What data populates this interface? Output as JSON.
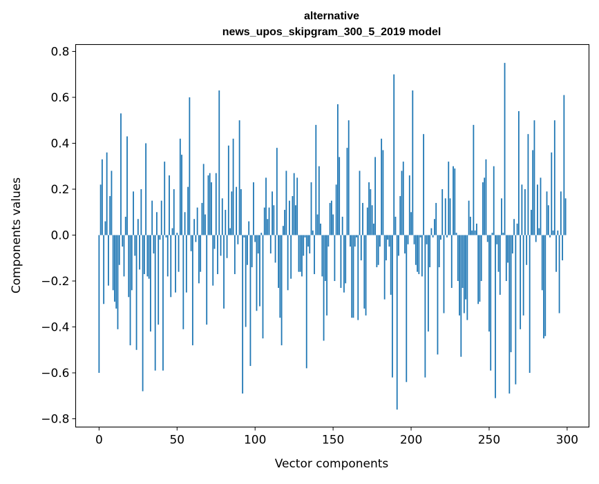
{
  "chart_data": {
    "type": "bar",
    "title_lines": [
      "alternative",
      "news_upos_skipgram_300_5_2019 model"
    ],
    "xlabel": "Vector components",
    "ylabel": "Components values",
    "xlim": [
      -15,
      314
    ],
    "ylim": [
      -0.836,
      0.83
    ],
    "xticks": [
      0,
      50,
      100,
      150,
      200,
      250,
      300
    ],
    "yticks": [
      -0.8,
      -0.6,
      -0.4,
      -0.2,
      0.0,
      0.2,
      0.4,
      0.6,
      0.8
    ],
    "ytick_labels": [
      "−0.8",
      "−0.6",
      "−0.4",
      "−0.2",
      "0.0",
      "0.2",
      "0.4",
      "0.6",
      "0.8"
    ],
    "xtick_labels": [
      "0",
      "50",
      "100",
      "150",
      "200",
      "250",
      "300"
    ],
    "grid": false,
    "bar_color": "#1f77b4",
    "values": [
      -0.6,
      0.22,
      0.33,
      -0.3,
      0.06,
      0.36,
      -0.22,
      0.17,
      0.28,
      -0.24,
      -0.29,
      -0.32,
      -0.41,
      -0.13,
      0.53,
      -0.05,
      -0.18,
      0.08,
      0.43,
      -0.27,
      -0.48,
      -0.24,
      0.19,
      -0.09,
      -0.5,
      0.07,
      -0.15,
      0.2,
      -0.68,
      -0.17,
      0.4,
      -0.18,
      -0.19,
      -0.42,
      0.15,
      -0.08,
      -0.59,
      0.1,
      -0.39,
      -0.02,
      0.15,
      -0.59,
      0.32,
      -0.01,
      -0.18,
      0.26,
      -0.27,
      0.03,
      0.2,
      -0.25,
      0.01,
      -0.16,
      0.42,
      0.35,
      -0.41,
      0.1,
      -0.25,
      0.21,
      0.6,
      -0.07,
      -0.48,
      0.07,
      -0.03,
      0.12,
      -0.21,
      -0.16,
      0.14,
      0.31,
      0.09,
      -0.39,
      0.26,
      0.27,
      0.23,
      -0.22,
      -0.06,
      0.27,
      -0.17,
      0.63,
      -0.09,
      0.16,
      -0.32,
      0.11,
      -0.1,
      0.39,
      0.03,
      0.19,
      0.42,
      -0.17,
      0.21,
      -0.04,
      0.5,
      0.2,
      -0.69,
      -0.01,
      -0.4,
      -0.13,
      0.06,
      -0.57,
      -0.14,
      0.23,
      -0.03,
      -0.33,
      -0.08,
      -0.31,
      0.01,
      -0.45,
      0.12,
      0.25,
      0.07,
      0.12,
      -0.08,
      0.19,
      0.13,
      -0.12,
      0.38,
      -0.23,
      -0.36,
      -0.48,
      0.04,
      0.11,
      0.28,
      -0.24,
      0.15,
      -0.19,
      0.17,
      0.27,
      0.13,
      0.25,
      -0.16,
      -0.16,
      -0.18,
      -0.09,
      -0.01,
      -0.58,
      -0.05,
      -0.08,
      0.23,
      0.02,
      -0.17,
      0.48,
      0.09,
      0.3,
      0.05,
      -0.18,
      -0.46,
      -0.2,
      -0.35,
      -0.05,
      0.14,
      0.15,
      0.09,
      -0.2,
      0.22,
      0.57,
      0.34,
      -0.23,
      0.08,
      -0.25,
      -0.21,
      0.38,
      0.5,
      -0.05,
      -0.36,
      -0.36,
      -0.05,
      -0.01,
      -0.37,
      0.28,
      -0.11,
      0.14,
      -0.32,
      -0.35,
      0.12,
      0.23,
      0.2,
      0.13,
      0.05,
      0.34,
      -0.14,
      -0.13,
      -0.05,
      0.42,
      0.37,
      -0.28,
      -0.11,
      -0.02,
      -0.05,
      -0.26,
      -0.62,
      0.7,
      0.08,
      -0.76,
      -0.09,
      0.17,
      0.28,
      0.32,
      -0.08,
      -0.64,
      -0.04,
      0.26,
      0.1,
      0.63,
      -0.04,
      -0.13,
      -0.16,
      -0.17,
      -0.01,
      -0.18,
      0.44,
      -0.62,
      -0.04,
      -0.42,
      -0.14,
      0.03,
      -0.01,
      0.07,
      0.14,
      -0.52,
      -0.14,
      -0.02,
      0.2,
      -0.34,
      0.16,
      -0.01,
      0.32,
      0.16,
      -0.23,
      0.3,
      0.29,
      0.01,
      -0.2,
      -0.35,
      -0.53,
      -0.23,
      -0.34,
      -0.28,
      -0.37,
      0.15,
      0.08,
      0.02,
      0.48,
      0.02,
      0.05,
      -0.3,
      -0.29,
      -0.2,
      0.23,
      0.25,
      0.33,
      -0.03,
      -0.42,
      -0.59,
      0.01,
      0.3,
      -0.71,
      -0.04,
      -0.16,
      -0.26,
      0.16,
      0.01,
      0.75,
      -0.2,
      -0.12,
      -0.69,
      -0.51,
      -0.08,
      0.07,
      -0.65,
      0.05,
      0.54,
      -0.41,
      0.22,
      -0.35,
      0.2,
      -0.13,
      0.44,
      -0.6,
      0.11,
      0.37,
      0.5,
      -0.03,
      0.22,
      0.03,
      0.25,
      -0.24,
      -0.45,
      -0.44,
      0.19,
      0.13,
      -0.01,
      0.36,
      0.02,
      0.5,
      -0.16,
      0.02,
      -0.34,
      0.19,
      -0.11,
      0.61,
      0.16
    ]
  }
}
